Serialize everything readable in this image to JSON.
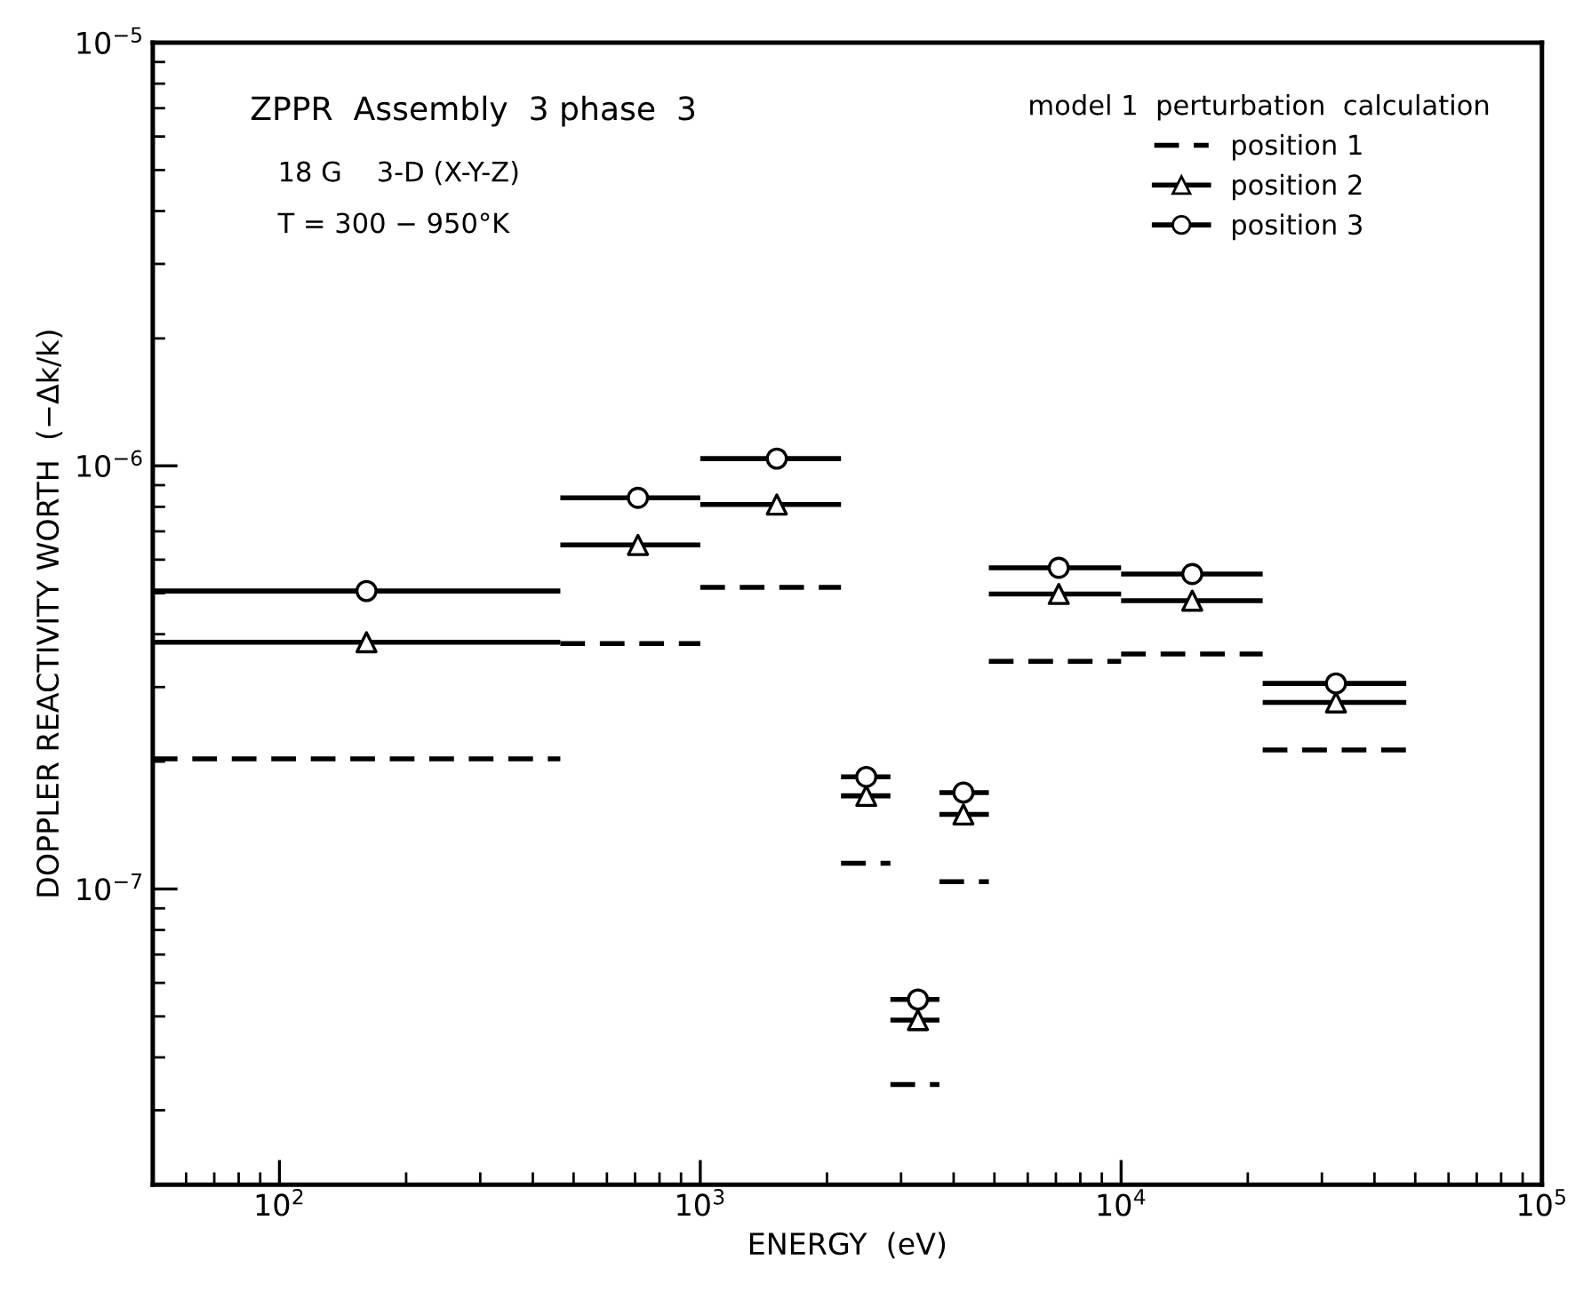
{
  "chart_data": {
    "type": "scatter",
    "xlabel": "ENERGY  (eV)",
    "ylabel": "DOPPLER REACTIVITY WORTH  (−Δk/k)",
    "legend_title": "model 1  perturbation  calculation",
    "legend": "top right",
    "annotations": [
      "ZPPR  Assembly  3 phase  3",
      "18 G    3-D (X-Y-Z)",
      "T = 300 − 950°K"
    ],
    "log": "xy",
    "grid": false,
    "xlim": [
      50,
      100000
    ],
    "ylim": [
      2e-08,
      1e-05
    ],
    "xticks": [
      {
        "value": 100,
        "label": "10$^{2}$"
      },
      {
        "value": 1000,
        "label": "10$^{3}$"
      },
      {
        "value": 10000,
        "label": "10$^{4}$"
      },
      {
        "value": 100000,
        "label": "10$^{5}$"
      }
    ],
    "yticks": [
      {
        "value": 1e-07,
        "label": "10$^{−7}$"
      },
      {
        "value": 1e-06,
        "label": "10$^{−6}$"
      },
      {
        "value": 1e-05,
        "label": "10$^{−5}$"
      }
    ],
    "series": [
      {
        "name": "position 1",
        "type": "line",
        "color": "#000000",
        "line_style": "dashed",
        "x": [
          50,
          465,
          465,
          1000,
          1000,
          2160,
          2160,
          2830,
          2830,
          3700,
          3700,
          4850,
          4850,
          10000,
          10000,
          21700,
          21700,
          47600
        ],
        "values": [
          2.03e-07,
          2.03e-07,
          3.8e-07,
          3.8e-07,
          5.16e-07,
          5.16e-07,
          1.15e-07,
          1.15e-07,
          3.45e-08,
          3.45e-08,
          1.04e-07,
          1.04e-07,
          3.45e-07,
          3.45e-07,
          3.59e-07,
          3.59e-07,
          2.13e-07,
          2.13e-07
        ]
      },
      {
        "name": "position 2",
        "color": "#000000",
        "marker": "triangle",
        "line_style": "solid",
        "x": [
          161,
          711,
          1520,
          2480,
          3290,
          4220,
          7110,
          14760,
          32400
        ],
        "values": [
          3.83e-07,
          6.5e-07,
          8.1e-07,
          1.66e-07,
          4.9e-08,
          1.5e-07,
          4.98e-07,
          4.8e-07,
          2.76e-07
        ],
        "xerrors": [
          [
            50,
            465
          ],
          [
            465,
            1000
          ],
          [
            1000,
            2160
          ],
          [
            2160,
            2830
          ],
          [
            2830,
            3700
          ],
          [
            3700,
            4850
          ],
          [
            4850,
            10000
          ],
          [
            10000,
            21700
          ],
          [
            21700,
            47600
          ]
        ]
      },
      {
        "name": "position 3",
        "color": "#000000",
        "marker": "circle",
        "line_style": "solid",
        "x": [
          161,
          711,
          1520,
          2480,
          3290,
          4220,
          7110,
          14760,
          32400
        ],
        "values": [
          5.06e-07,
          8.4e-07,
          1.04e-06,
          1.84e-07,
          5.48e-08,
          1.69e-07,
          5.74e-07,
          5.55e-07,
          3.06e-07
        ],
        "xerrors": [
          [
            50,
            465
          ],
          [
            465,
            1000
          ],
          [
            1000,
            2160
          ],
          [
            2160,
            2830
          ],
          [
            2830,
            3700
          ],
          [
            3700,
            4850
          ],
          [
            4850,
            10000
          ],
          [
            10000,
            21700
          ],
          [
            21700,
            47600
          ]
        ]
      }
    ]
  }
}
